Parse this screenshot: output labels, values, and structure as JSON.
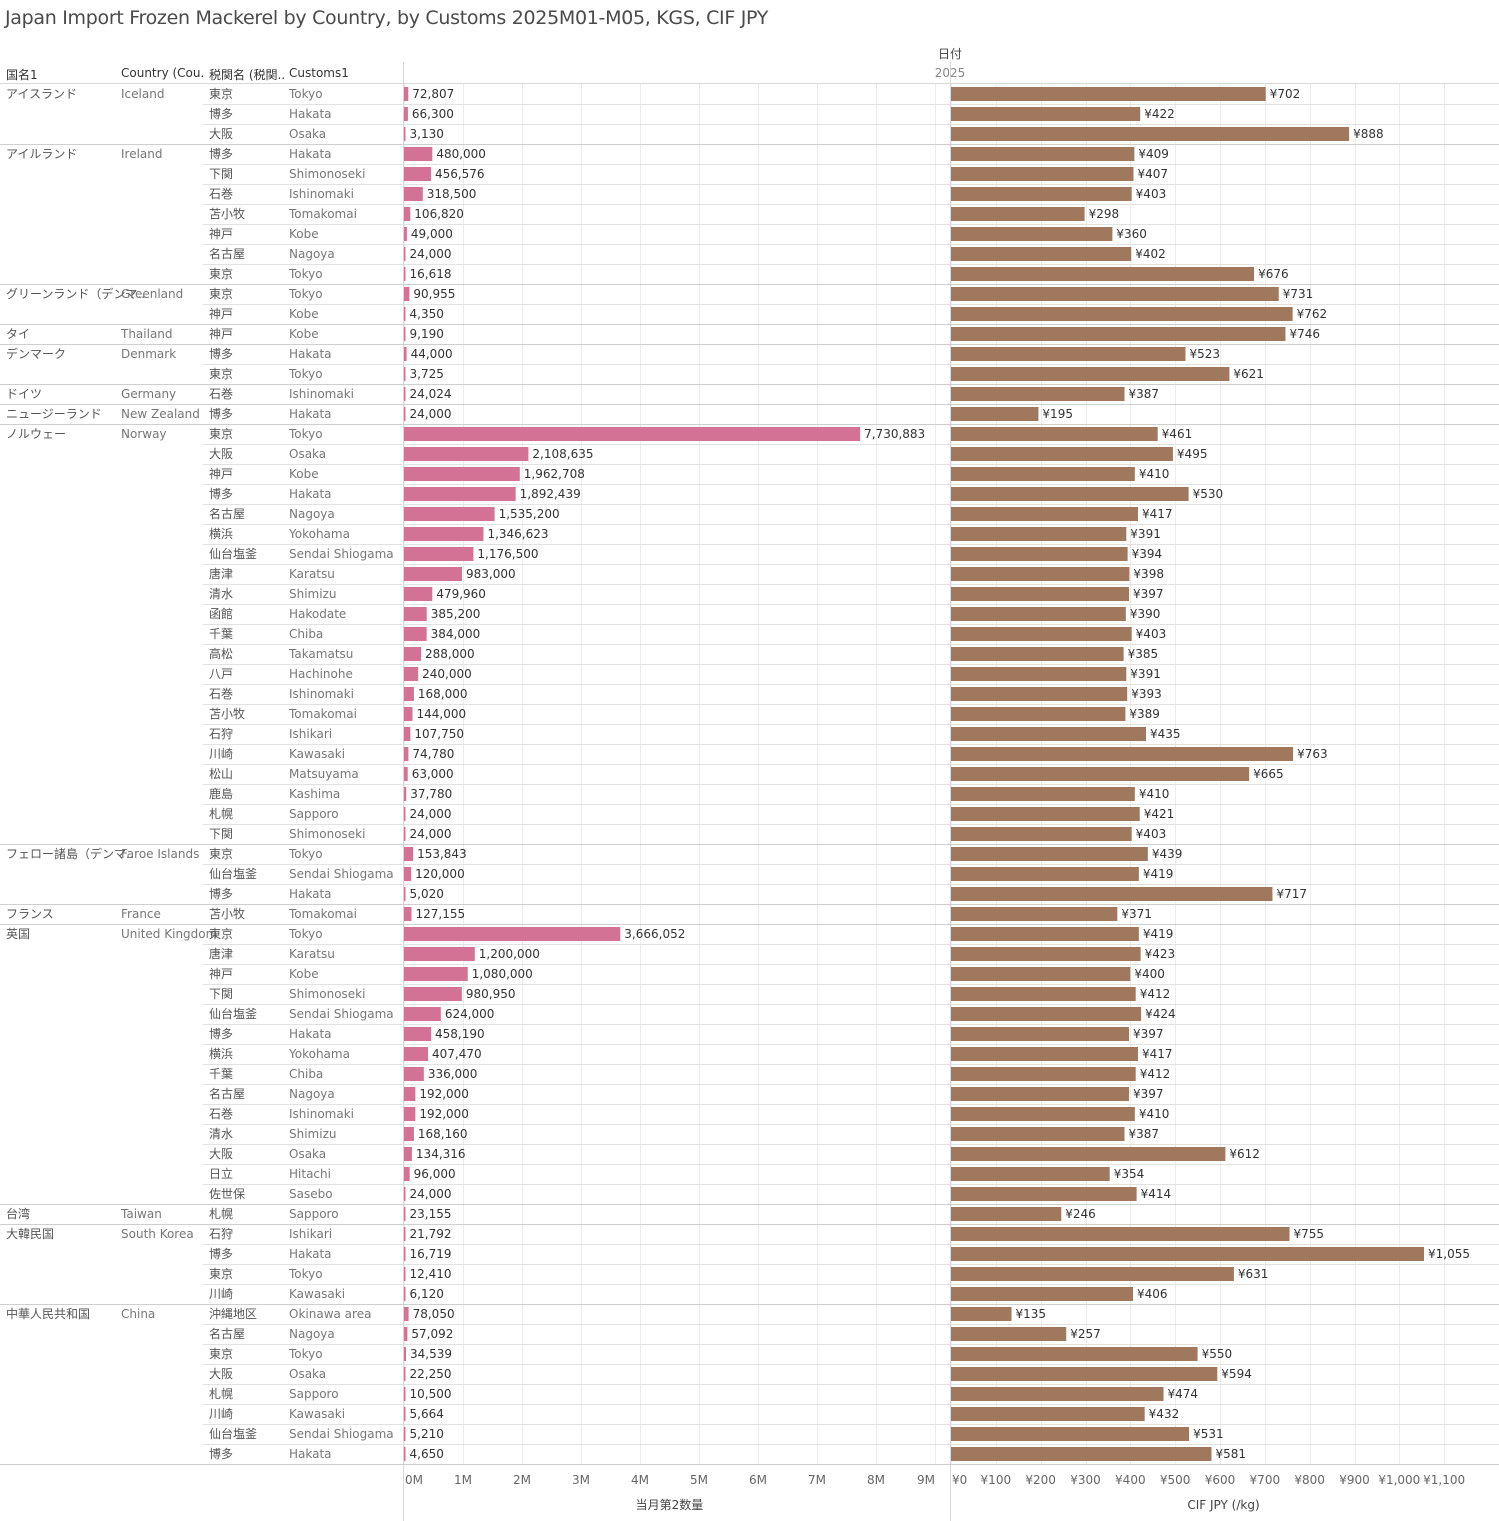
{
  "title": "Japan Import Frozen Mackerel by Country, by Customs 2025M01-M05, KGS, CIF JPY",
  "headers": {
    "date_label": "日付",
    "year_label": "2025",
    "col_country_jp": "国名1",
    "col_country_en": "Country (Cou..",
    "col_customs_jp": "税関名 (税関..",
    "col_customs_en": "Customs1"
  },
  "chart_data": {
    "type": "bar",
    "panels": [
      {
        "name": "当月第2数量",
        "xlabel": "当月第2数量",
        "color": "#d37295",
        "xlim": [
          0,
          9000000
        ],
        "ticks": [
          0,
          1000000,
          2000000,
          3000000,
          4000000,
          5000000,
          6000000,
          7000000,
          8000000,
          9000000
        ],
        "tick_labels": [
          "0M",
          "1M",
          "2M",
          "3M",
          "4M",
          "5M",
          "6M",
          "7M",
          "8M",
          "9M"
        ]
      },
      {
        "name": "CIF JPY (/kg)",
        "xlabel": "CIF JPY (/kg)",
        "color": "#a0785e",
        "xlim": [
          0,
          1200
        ],
        "ticks": [
          0,
          100,
          200,
          300,
          400,
          500,
          600,
          700,
          800,
          900,
          1000,
          1100
        ],
        "tick_labels": [
          "¥0",
          "¥100",
          "¥200",
          "¥300",
          "¥400",
          "¥500",
          "¥600",
          "¥700",
          "¥800",
          "¥900",
          "¥1,000",
          "¥1,100"
        ]
      }
    ],
    "grid": true,
    "groups": [
      {
        "country_jp": "アイスランド",
        "country_en": "Iceland",
        "rows": [
          {
            "customs_jp": "東京",
            "customs_en": "Tokyo",
            "qty": 72807,
            "qty_label": "72,807",
            "cif": 702,
            "cif_label": "¥702"
          },
          {
            "customs_jp": "博多",
            "customs_en": "Hakata",
            "qty": 66300,
            "qty_label": "66,300",
            "cif": 422,
            "cif_label": "¥422"
          },
          {
            "customs_jp": "大阪",
            "customs_en": "Osaka",
            "qty": 3130,
            "qty_label": "3,130",
            "cif": 888,
            "cif_label": "¥888"
          }
        ]
      },
      {
        "country_jp": "アイルランド",
        "country_en": "Ireland",
        "rows": [
          {
            "customs_jp": "博多",
            "customs_en": "Hakata",
            "qty": 480000,
            "qty_label": "480,000",
            "cif": 409,
            "cif_label": "¥409"
          },
          {
            "customs_jp": "下関",
            "customs_en": "Shimonoseki",
            "qty": 456576,
            "qty_label": "456,576",
            "cif": 407,
            "cif_label": "¥407"
          },
          {
            "customs_jp": "石巻",
            "customs_en": "Ishinomaki",
            "qty": 318500,
            "qty_label": "318,500",
            "cif": 403,
            "cif_label": "¥403"
          },
          {
            "customs_jp": "苫小牧",
            "customs_en": "Tomakomai",
            "qty": 106820,
            "qty_label": "106,820",
            "cif": 298,
            "cif_label": "¥298"
          },
          {
            "customs_jp": "神戸",
            "customs_en": "Kobe",
            "qty": 49000,
            "qty_label": "49,000",
            "cif": 360,
            "cif_label": "¥360"
          },
          {
            "customs_jp": "名古屋",
            "customs_en": "Nagoya",
            "qty": 24000,
            "qty_label": "24,000",
            "cif": 402,
            "cif_label": "¥402"
          },
          {
            "customs_jp": "東京",
            "customs_en": "Tokyo",
            "qty": 16618,
            "qty_label": "16,618",
            "cif": 676,
            "cif_label": "¥676"
          }
        ]
      },
      {
        "country_jp": "グリーンランド（デンマ..",
        "country_en": "Greenland",
        "rows": [
          {
            "customs_jp": "東京",
            "customs_en": "Tokyo",
            "qty": 90955,
            "qty_label": "90,955",
            "cif": 731,
            "cif_label": "¥731"
          },
          {
            "customs_jp": "神戸",
            "customs_en": "Kobe",
            "qty": 4350,
            "qty_label": "4,350",
            "cif": 762,
            "cif_label": "¥762"
          }
        ]
      },
      {
        "country_jp": "タイ",
        "country_en": "Thailand",
        "rows": [
          {
            "customs_jp": "神戸",
            "customs_en": "Kobe",
            "qty": 9190,
            "qty_label": "9,190",
            "cif": 746,
            "cif_label": "¥746"
          }
        ]
      },
      {
        "country_jp": "デンマーク",
        "country_en": "Denmark",
        "rows": [
          {
            "customs_jp": "博多",
            "customs_en": "Hakata",
            "qty": 44000,
            "qty_label": "44,000",
            "cif": 523,
            "cif_label": "¥523"
          },
          {
            "customs_jp": "東京",
            "customs_en": "Tokyo",
            "qty": 3725,
            "qty_label": "3,725",
            "cif": 621,
            "cif_label": "¥621"
          }
        ]
      },
      {
        "country_jp": "ドイツ",
        "country_en": "Germany",
        "rows": [
          {
            "customs_jp": "石巻",
            "customs_en": "Ishinomaki",
            "qty": 24024,
            "qty_label": "24,024",
            "cif": 387,
            "cif_label": "¥387"
          }
        ]
      },
      {
        "country_jp": "ニュージーランド",
        "country_en": "New Zealand",
        "rows": [
          {
            "customs_jp": "博多",
            "customs_en": "Hakata",
            "qty": 24000,
            "qty_label": "24,000",
            "cif": 195,
            "cif_label": "¥195"
          }
        ]
      },
      {
        "country_jp": "ノルウェー",
        "country_en": "Norway",
        "rows": [
          {
            "customs_jp": "東京",
            "customs_en": "Tokyo",
            "qty": 7730883,
            "qty_label": "7,730,883",
            "cif": 461,
            "cif_label": "¥461"
          },
          {
            "customs_jp": "大阪",
            "customs_en": "Osaka",
            "qty": 2108635,
            "qty_label": "2,108,635",
            "cif": 495,
            "cif_label": "¥495"
          },
          {
            "customs_jp": "神戸",
            "customs_en": "Kobe",
            "qty": 1962708,
            "qty_label": "1,962,708",
            "cif": 410,
            "cif_label": "¥410"
          },
          {
            "customs_jp": "博多",
            "customs_en": "Hakata",
            "qty": 1892439,
            "qty_label": "1,892,439",
            "cif": 530,
            "cif_label": "¥530"
          },
          {
            "customs_jp": "名古屋",
            "customs_en": "Nagoya",
            "qty": 1535200,
            "qty_label": "1,535,200",
            "cif": 417,
            "cif_label": "¥417"
          },
          {
            "customs_jp": "横浜",
            "customs_en": "Yokohama",
            "qty": 1346623,
            "qty_label": "1,346,623",
            "cif": 391,
            "cif_label": "¥391"
          },
          {
            "customs_jp": "仙台塩釜",
            "customs_en": "Sendai Shiogama",
            "qty": 1176500,
            "qty_label": "1,176,500",
            "cif": 394,
            "cif_label": "¥394"
          },
          {
            "customs_jp": "唐津",
            "customs_en": "Karatsu",
            "qty": 983000,
            "qty_label": "983,000",
            "cif": 398,
            "cif_label": "¥398"
          },
          {
            "customs_jp": "清水",
            "customs_en": "Shimizu",
            "qty": 479960,
            "qty_label": "479,960",
            "cif": 397,
            "cif_label": "¥397"
          },
          {
            "customs_jp": "函館",
            "customs_en": "Hakodate",
            "qty": 385200,
            "qty_label": "385,200",
            "cif": 390,
            "cif_label": "¥390"
          },
          {
            "customs_jp": "千葉",
            "customs_en": "Chiba",
            "qty": 384000,
            "qty_label": "384,000",
            "cif": 403,
            "cif_label": "¥403"
          },
          {
            "customs_jp": "高松",
            "customs_en": "Takamatsu",
            "qty": 288000,
            "qty_label": "288,000",
            "cif": 385,
            "cif_label": "¥385"
          },
          {
            "customs_jp": "八戸",
            "customs_en": "Hachinohe",
            "qty": 240000,
            "qty_label": "240,000",
            "cif": 391,
            "cif_label": "¥391"
          },
          {
            "customs_jp": "石巻",
            "customs_en": "Ishinomaki",
            "qty": 168000,
            "qty_label": "168,000",
            "cif": 393,
            "cif_label": "¥393"
          },
          {
            "customs_jp": "苫小牧",
            "customs_en": "Tomakomai",
            "qty": 144000,
            "qty_label": "144,000",
            "cif": 389,
            "cif_label": "¥389"
          },
          {
            "customs_jp": "石狩",
            "customs_en": "Ishikari",
            "qty": 107750,
            "qty_label": "107,750",
            "cif": 435,
            "cif_label": "¥435"
          },
          {
            "customs_jp": "川崎",
            "customs_en": "Kawasaki",
            "qty": 74780,
            "qty_label": "74,780",
            "cif": 763,
            "cif_label": "¥763"
          },
          {
            "customs_jp": "松山",
            "customs_en": "Matsuyama",
            "qty": 63000,
            "qty_label": "63,000",
            "cif": 665,
            "cif_label": "¥665"
          },
          {
            "customs_jp": "鹿島",
            "customs_en": "Kashima",
            "qty": 37780,
            "qty_label": "37,780",
            "cif": 410,
            "cif_label": "¥410"
          },
          {
            "customs_jp": "札幌",
            "customs_en": "Sapporo",
            "qty": 24000,
            "qty_label": "24,000",
            "cif": 421,
            "cif_label": "¥421"
          },
          {
            "customs_jp": "下関",
            "customs_en": "Shimonoseki",
            "qty": 24000,
            "qty_label": "24,000",
            "cif": 403,
            "cif_label": "¥403"
          }
        ]
      },
      {
        "country_jp": "フェロー諸島（デンマ..",
        "country_en": "Faroe Islands",
        "rows": [
          {
            "customs_jp": "東京",
            "customs_en": "Tokyo",
            "qty": 153843,
            "qty_label": "153,843",
            "cif": 439,
            "cif_label": "¥439"
          },
          {
            "customs_jp": "仙台塩釜",
            "customs_en": "Sendai Shiogama",
            "qty": 120000,
            "qty_label": "120,000",
            "cif": 419,
            "cif_label": "¥419"
          },
          {
            "customs_jp": "博多",
            "customs_en": "Hakata",
            "qty": 5020,
            "qty_label": "5,020",
            "cif": 717,
            "cif_label": "¥717"
          }
        ]
      },
      {
        "country_jp": "フランス",
        "country_en": "France",
        "rows": [
          {
            "customs_jp": "苫小牧",
            "customs_en": "Tomakomai",
            "qty": 127155,
            "qty_label": "127,155",
            "cif": 371,
            "cif_label": "¥371"
          }
        ]
      },
      {
        "country_jp": "英国",
        "country_en": "United Kingdom",
        "rows": [
          {
            "customs_jp": "東京",
            "customs_en": "Tokyo",
            "qty": 3666052,
            "qty_label": "3,666,052",
            "cif": 419,
            "cif_label": "¥419"
          },
          {
            "customs_jp": "唐津",
            "customs_en": "Karatsu",
            "qty": 1200000,
            "qty_label": "1,200,000",
            "cif": 423,
            "cif_label": "¥423"
          },
          {
            "customs_jp": "神戸",
            "customs_en": "Kobe",
            "qty": 1080000,
            "qty_label": "1,080,000",
            "cif": 400,
            "cif_label": "¥400"
          },
          {
            "customs_jp": "下関",
            "customs_en": "Shimonoseki",
            "qty": 980950,
            "qty_label": "980,950",
            "cif": 412,
            "cif_label": "¥412"
          },
          {
            "customs_jp": "仙台塩釜",
            "customs_en": "Sendai Shiogama",
            "qty": 624000,
            "qty_label": "624,000",
            "cif": 424,
            "cif_label": "¥424"
          },
          {
            "customs_jp": "博多",
            "customs_en": "Hakata",
            "qty": 458190,
            "qty_label": "458,190",
            "cif": 397,
            "cif_label": "¥397"
          },
          {
            "customs_jp": "横浜",
            "customs_en": "Yokohama",
            "qty": 407470,
            "qty_label": "407,470",
            "cif": 417,
            "cif_label": "¥417"
          },
          {
            "customs_jp": "千葉",
            "customs_en": "Chiba",
            "qty": 336000,
            "qty_label": "336,000",
            "cif": 412,
            "cif_label": "¥412"
          },
          {
            "customs_jp": "名古屋",
            "customs_en": "Nagoya",
            "qty": 192000,
            "qty_label": "192,000",
            "cif": 397,
            "cif_label": "¥397"
          },
          {
            "customs_jp": "石巻",
            "customs_en": "Ishinomaki",
            "qty": 192000,
            "qty_label": "192,000",
            "cif": 410,
            "cif_label": "¥410"
          },
          {
            "customs_jp": "清水",
            "customs_en": "Shimizu",
            "qty": 168160,
            "qty_label": "168,160",
            "cif": 387,
            "cif_label": "¥387"
          },
          {
            "customs_jp": "大阪",
            "customs_en": "Osaka",
            "qty": 134316,
            "qty_label": "134,316",
            "cif": 612,
            "cif_label": "¥612"
          },
          {
            "customs_jp": "日立",
            "customs_en": "Hitachi",
            "qty": 96000,
            "qty_label": "96,000",
            "cif": 354,
            "cif_label": "¥354"
          },
          {
            "customs_jp": "佐世保",
            "customs_en": "Sasebo",
            "qty": 24000,
            "qty_label": "24,000",
            "cif": 414,
            "cif_label": "¥414"
          }
        ]
      },
      {
        "country_jp": "台湾",
        "country_en": "Taiwan",
        "rows": [
          {
            "customs_jp": "札幌",
            "customs_en": "Sapporo",
            "qty": 23155,
            "qty_label": "23,155",
            "cif": 246,
            "cif_label": "¥246"
          }
        ]
      },
      {
        "country_jp": "大韓民国",
        "country_en": "South Korea",
        "rows": [
          {
            "customs_jp": "石狩",
            "customs_en": "Ishikari",
            "qty": 21792,
            "qty_label": "21,792",
            "cif": 755,
            "cif_label": "¥755"
          },
          {
            "customs_jp": "博多",
            "customs_en": "Hakata",
            "qty": 16719,
            "qty_label": "16,719",
            "cif": 1055,
            "cif_label": "¥1,055"
          },
          {
            "customs_jp": "東京",
            "customs_en": "Tokyo",
            "qty": 12410,
            "qty_label": "12,410",
            "cif": 631,
            "cif_label": "¥631"
          },
          {
            "customs_jp": "川崎",
            "customs_en": "Kawasaki",
            "qty": 6120,
            "qty_label": "6,120",
            "cif": 406,
            "cif_label": "¥406"
          }
        ]
      },
      {
        "country_jp": "中華人民共和国",
        "country_en": "China",
        "rows": [
          {
            "customs_jp": "沖縄地区",
            "customs_en": "Okinawa area",
            "qty": 78050,
            "qty_label": "78,050",
            "cif": 135,
            "cif_label": "¥135"
          },
          {
            "customs_jp": "名古屋",
            "customs_en": "Nagoya",
            "qty": 57092,
            "qty_label": "57,092",
            "cif": 257,
            "cif_label": "¥257"
          },
          {
            "customs_jp": "東京",
            "customs_en": "Tokyo",
            "qty": 34539,
            "qty_label": "34,539",
            "cif": 550,
            "cif_label": "¥550"
          },
          {
            "customs_jp": "大阪",
            "customs_en": "Osaka",
            "qty": 22250,
            "qty_label": "22,250",
            "cif": 594,
            "cif_label": "¥594"
          },
          {
            "customs_jp": "札幌",
            "customs_en": "Sapporo",
            "qty": 10500,
            "qty_label": "10,500",
            "cif": 474,
            "cif_label": "¥474"
          },
          {
            "customs_jp": "川崎",
            "customs_en": "Kawasaki",
            "qty": 5664,
            "qty_label": "5,664",
            "cif": 432,
            "cif_label": "¥432"
          },
          {
            "customs_jp": "仙台塩釜",
            "customs_en": "Sendai Shiogama",
            "qty": 5210,
            "qty_label": "5,210",
            "cif": 531,
            "cif_label": "¥531"
          },
          {
            "customs_jp": "博多",
            "customs_en": "Hakata",
            "qty": 4650,
            "qty_label": "4,650",
            "cif": 581,
            "cif_label": "¥581"
          }
        ]
      }
    ]
  }
}
